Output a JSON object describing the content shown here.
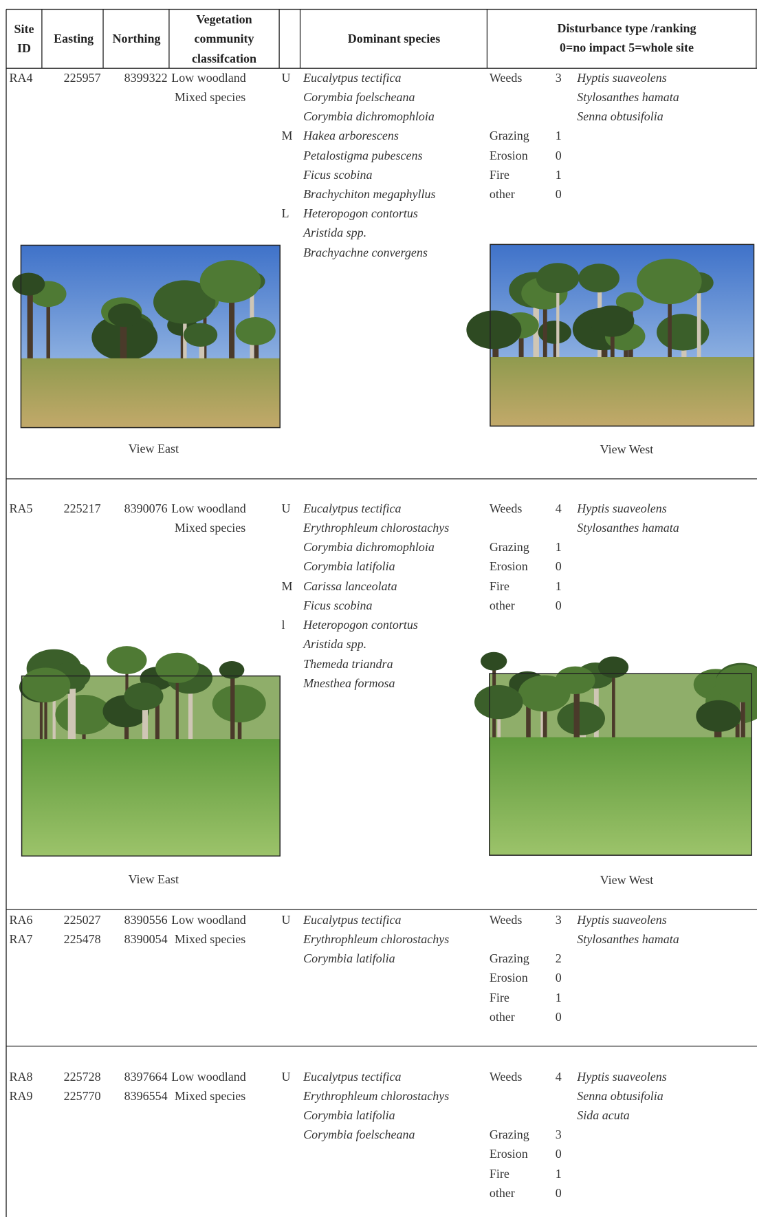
{
  "header": {
    "site_id": [
      "Site",
      "ID"
    ],
    "easting": "Easting",
    "northing": "Northing",
    "vegetation": [
      "Vegetation",
      "community",
      "classifcation"
    ],
    "species": "Dominant species",
    "disturbance": [
      "Disturbance type /ranking",
      "0=no impact 5=whole site"
    ]
  },
  "sites": [
    {
      "rows": [
        {
          "id": "RA4",
          "easting": 225957,
          "northing": 8399322
        }
      ],
      "vegetation": [
        "Low woodland",
        "Mixed species"
      ],
      "strata": [
        {
          "layer": "U",
          "species": [
            "Eucalytpus tectifica",
            "Corymbia foelscheana",
            "Corymbia dichromophloia"
          ]
        },
        {
          "layer": "M",
          "species": [
            "Hakea arborescens",
            "Petalostigma pubescens",
            "Ficus scobina",
            "Brachychiton megaphyllus"
          ]
        },
        {
          "layer": "L",
          "species": [
            "Heteropogon contortus",
            "Aristida spp.",
            "Brachyachne convergens"
          ]
        }
      ],
      "weeds": {
        "label": "Weeds",
        "rank": 3,
        "species": [
          "Hyptis suaveolens",
          "Stylosanthes hamata",
          "Senna obtusifolia"
        ]
      },
      "other": [
        {
          "label": "Grazing",
          "rank": 1
        },
        {
          "label": "Erosion",
          "rank": 0
        },
        {
          "label": "Fire",
          "rank": 1
        },
        {
          "label": "other",
          "rank": 0
        }
      ],
      "photos": [
        {
          "caption": "View East"
        },
        {
          "caption": "View West"
        }
      ]
    },
    {
      "rows": [
        {
          "id": "RA5",
          "easting": 225217,
          "northing": 8390076
        }
      ],
      "vegetation": [
        "Low woodland",
        "Mixed species"
      ],
      "strata": [
        {
          "layer": "U",
          "species": [
            "Eucalytpus tectifica",
            "Erythrophleum chlorostachys",
            "Corymbia dichromophloia",
            "Corymbia latifolia"
          ]
        },
        {
          "layer": "M",
          "species": [
            "Carissa lanceolata",
            "Ficus scobina"
          ]
        },
        {
          "layer": "l",
          "species": [
            "Heteropogon contortus",
            "Aristida spp.",
            "Themeda triandra",
            "Mnesthea formosa"
          ]
        }
      ],
      "weeds": {
        "label": "Weeds",
        "rank": 4,
        "species": [
          "Hyptis suaveolens",
          "Stylosanthes hamata"
        ]
      },
      "other": [
        {
          "label": "Grazing",
          "rank": 1
        },
        {
          "label": "Erosion",
          "rank": 0
        },
        {
          "label": "Fire",
          "rank": 1
        },
        {
          "label": "other",
          "rank": 0
        }
      ],
      "photos": [
        {
          "caption": "View East"
        },
        {
          "caption": "View West"
        }
      ]
    },
    {
      "rows": [
        {
          "id": "RA6",
          "easting": 225027,
          "northing": 8390556
        },
        {
          "id": "RA7",
          "easting": 225478,
          "northing": 8390054
        }
      ],
      "vegetation": [
        "Low woodland",
        "Mixed species"
      ],
      "strata": [
        {
          "layer": "U",
          "species": [
            "Eucalytpus tectifica",
            "Erythrophleum chlorostachys",
            "Corymbia latifolia"
          ]
        }
      ],
      "weeds": {
        "label": "Weeds",
        "rank": 3,
        "species": [
          "Hyptis suaveolens",
          "Stylosanthes hamata"
        ]
      },
      "other": [
        {
          "label": "Grazing",
          "rank": 2
        },
        {
          "label": "Erosion",
          "rank": 0
        },
        {
          "label": "Fire",
          "rank": 1
        },
        {
          "label": "other",
          "rank": 0
        }
      ],
      "photos": []
    },
    {
      "rows": [
        {
          "id": "RA8",
          "easting": 225728,
          "northing": 8397664
        },
        {
          "id": "RA9",
          "easting": 225770,
          "northing": 8396554
        }
      ],
      "vegetation": [
        "Low woodland",
        "Mixed species"
      ],
      "strata": [
        {
          "layer": "U",
          "species": [
            "Eucalytpus tectifica",
            "Erythrophleum chlorostachys",
            "Corymbia latifolia",
            "Corymbia foelscheana"
          ]
        }
      ],
      "weeds": {
        "label": "Weeds",
        "rank": 4,
        "species": [
          "Hyptis suaveolens",
          "Senna obtusifolia",
          "Sida acuta"
        ]
      },
      "other": [
        {
          "label": "Grazing",
          "rank": 3
        },
        {
          "label": "Erosion",
          "rank": 0
        },
        {
          "label": "Fire",
          "rank": 1
        },
        {
          "label": "other",
          "rank": 0
        }
      ],
      "photos": []
    }
  ]
}
